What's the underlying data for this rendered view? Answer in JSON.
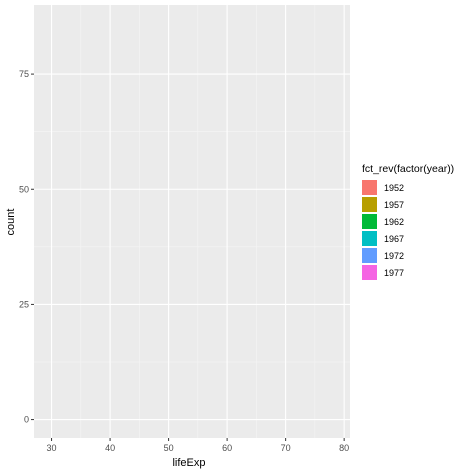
{
  "chart_data": {
    "type": "bar",
    "xlabel": "lifeExp",
    "ylabel": "count",
    "xlim": [
      27,
      81
    ],
    "ylim": [
      -4,
      90
    ],
    "x_ticks": [
      30,
      40,
      50,
      60,
      70,
      80
    ],
    "x_tick_labels": [
      "30",
      "40",
      "50",
      "60",
      "70",
      "80"
    ],
    "y_ticks": [
      0,
      25,
      50,
      75
    ],
    "y_tick_labels": [
      "0",
      "25",
      "50",
      "75"
    ],
    "grid": true,
    "legend": {
      "title": "fct_rev(factor(year))",
      "placement": "right",
      "entries": [
        {
          "label": "1952",
          "color": "#F8766D"
        },
        {
          "label": "1957",
          "color": "#B79F00"
        },
        {
          "label": "1962",
          "color": "#00BA38"
        },
        {
          "label": "1967",
          "color": "#00BFC4"
        },
        {
          "label": "1972",
          "color": "#619CFF"
        },
        {
          "label": "1977",
          "color": "#F564E3"
        }
      ]
    },
    "series": []
  },
  "colors": {
    "panel_background": "#EBEBEB",
    "grid_major": "#FFFFFF",
    "grid_minor": "#F5F5F5",
    "tick_text": "#4D4D4D"
  }
}
